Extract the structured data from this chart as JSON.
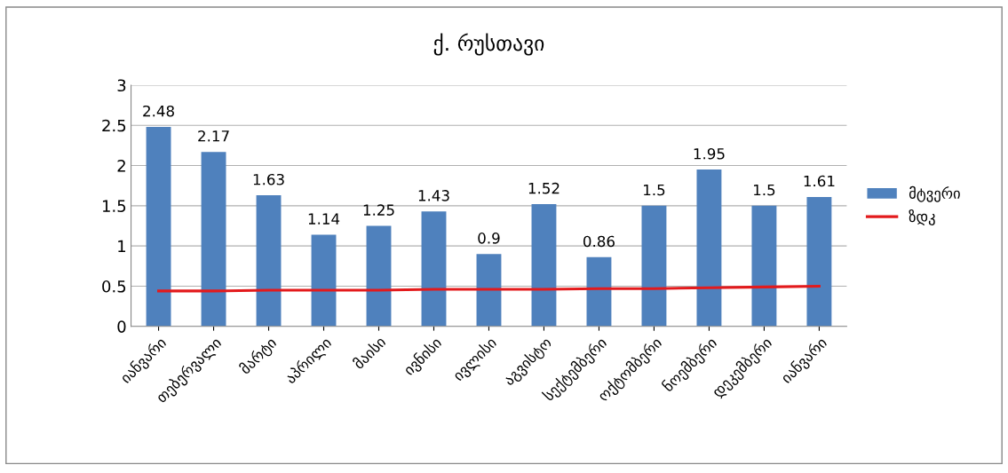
{
  "chart_data": {
    "type": "bar",
    "title": "ქ. რუსთავი",
    "categories": [
      "იანვარი",
      "თებერვალი",
      "მარტი",
      "აპრილი",
      "მაისი",
      "ივნისი",
      "ივლისი",
      "აგვისტო",
      "სექტემბერი",
      "ოქტომბერი",
      "ნოემბერი",
      "დეკემბერი",
      "იანვარი"
    ],
    "series": [
      {
        "name": "მტვერი",
        "color": "#4f81bd",
        "values": [
          2.48,
          2.17,
          1.63,
          1.14,
          1.25,
          1.43,
          0.9,
          1.52,
          0.86,
          1.5,
          1.95,
          1.5,
          1.61
        ],
        "value_labels": [
          "2.48",
          "2.17",
          "1.63",
          "1.14",
          "1.25",
          "1.43",
          "0.9",
          "1.52",
          "0.86",
          "1.5",
          "1.95",
          "1.5",
          "1.61"
        ]
      },
      {
        "name": "ზდკ",
        "type": "line",
        "color": "#e31a1c",
        "values": [
          0.44,
          0.44,
          0.45,
          0.45,
          0.45,
          0.46,
          0.46,
          0.46,
          0.47,
          0.47,
          0.48,
          0.49,
          0.5
        ]
      }
    ],
    "ylim": [
      0,
      3
    ],
    "yticks": [
      0,
      0.5,
      1,
      1.5,
      2,
      2.5,
      3
    ],
    "grid": "y",
    "legend": "right"
  }
}
